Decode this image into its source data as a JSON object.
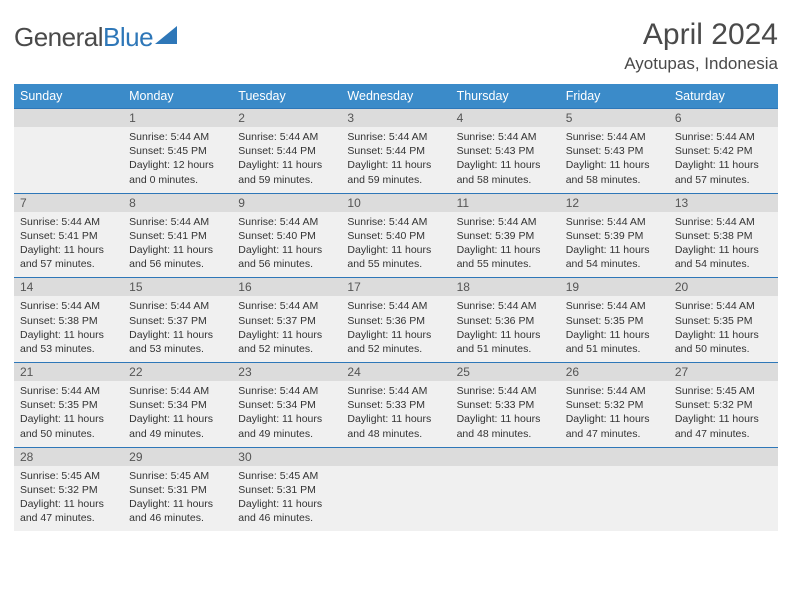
{
  "logo": {
    "text_gray": "General",
    "text_blue": "Blue"
  },
  "title": "April 2024",
  "location": "Ayotupas, Indonesia",
  "colors": {
    "header_bg": "#3b8bc9",
    "header_text": "#ffffff",
    "daynum_bg": "#dcdcdc",
    "detail_bg": "#f0f0f0",
    "rule": "#2e77b8",
    "text": "#4a4a4a"
  },
  "day_names": [
    "Sunday",
    "Monday",
    "Tuesday",
    "Wednesday",
    "Thursday",
    "Friday",
    "Saturday"
  ],
  "weeks": [
    [
      null,
      {
        "n": "1",
        "sr": "5:44 AM",
        "ss": "5:45 PM",
        "dl": "12 hours and 0 minutes."
      },
      {
        "n": "2",
        "sr": "5:44 AM",
        "ss": "5:44 PM",
        "dl": "11 hours and 59 minutes."
      },
      {
        "n": "3",
        "sr": "5:44 AM",
        "ss": "5:44 PM",
        "dl": "11 hours and 59 minutes."
      },
      {
        "n": "4",
        "sr": "5:44 AM",
        "ss": "5:43 PM",
        "dl": "11 hours and 58 minutes."
      },
      {
        "n": "5",
        "sr": "5:44 AM",
        "ss": "5:43 PM",
        "dl": "11 hours and 58 minutes."
      },
      {
        "n": "6",
        "sr": "5:44 AM",
        "ss": "5:42 PM",
        "dl": "11 hours and 57 minutes."
      }
    ],
    [
      {
        "n": "7",
        "sr": "5:44 AM",
        "ss": "5:41 PM",
        "dl": "11 hours and 57 minutes."
      },
      {
        "n": "8",
        "sr": "5:44 AM",
        "ss": "5:41 PM",
        "dl": "11 hours and 56 minutes."
      },
      {
        "n": "9",
        "sr": "5:44 AM",
        "ss": "5:40 PM",
        "dl": "11 hours and 56 minutes."
      },
      {
        "n": "10",
        "sr": "5:44 AM",
        "ss": "5:40 PM",
        "dl": "11 hours and 55 minutes."
      },
      {
        "n": "11",
        "sr": "5:44 AM",
        "ss": "5:39 PM",
        "dl": "11 hours and 55 minutes."
      },
      {
        "n": "12",
        "sr": "5:44 AM",
        "ss": "5:39 PM",
        "dl": "11 hours and 54 minutes."
      },
      {
        "n": "13",
        "sr": "5:44 AM",
        "ss": "5:38 PM",
        "dl": "11 hours and 54 minutes."
      }
    ],
    [
      {
        "n": "14",
        "sr": "5:44 AM",
        "ss": "5:38 PM",
        "dl": "11 hours and 53 minutes."
      },
      {
        "n": "15",
        "sr": "5:44 AM",
        "ss": "5:37 PM",
        "dl": "11 hours and 53 minutes."
      },
      {
        "n": "16",
        "sr": "5:44 AM",
        "ss": "5:37 PM",
        "dl": "11 hours and 52 minutes."
      },
      {
        "n": "17",
        "sr": "5:44 AM",
        "ss": "5:36 PM",
        "dl": "11 hours and 52 minutes."
      },
      {
        "n": "18",
        "sr": "5:44 AM",
        "ss": "5:36 PM",
        "dl": "11 hours and 51 minutes."
      },
      {
        "n": "19",
        "sr": "5:44 AM",
        "ss": "5:35 PM",
        "dl": "11 hours and 51 minutes."
      },
      {
        "n": "20",
        "sr": "5:44 AM",
        "ss": "5:35 PM",
        "dl": "11 hours and 50 minutes."
      }
    ],
    [
      {
        "n": "21",
        "sr": "5:44 AM",
        "ss": "5:35 PM",
        "dl": "11 hours and 50 minutes."
      },
      {
        "n": "22",
        "sr": "5:44 AM",
        "ss": "5:34 PM",
        "dl": "11 hours and 49 minutes."
      },
      {
        "n": "23",
        "sr": "5:44 AM",
        "ss": "5:34 PM",
        "dl": "11 hours and 49 minutes."
      },
      {
        "n": "24",
        "sr": "5:44 AM",
        "ss": "5:33 PM",
        "dl": "11 hours and 48 minutes."
      },
      {
        "n": "25",
        "sr": "5:44 AM",
        "ss": "5:33 PM",
        "dl": "11 hours and 48 minutes."
      },
      {
        "n": "26",
        "sr": "5:44 AM",
        "ss": "5:32 PM",
        "dl": "11 hours and 47 minutes."
      },
      {
        "n": "27",
        "sr": "5:45 AM",
        "ss": "5:32 PM",
        "dl": "11 hours and 47 minutes."
      }
    ],
    [
      {
        "n": "28",
        "sr": "5:45 AM",
        "ss": "5:32 PM",
        "dl": "11 hours and 47 minutes."
      },
      {
        "n": "29",
        "sr": "5:45 AM",
        "ss": "5:31 PM",
        "dl": "11 hours and 46 minutes."
      },
      {
        "n": "30",
        "sr": "5:45 AM",
        "ss": "5:31 PM",
        "dl": "11 hours and 46 minutes."
      },
      null,
      null,
      null,
      null
    ]
  ],
  "labels": {
    "sunrise": "Sunrise:",
    "sunset": "Sunset:",
    "daylight": "Daylight:"
  }
}
